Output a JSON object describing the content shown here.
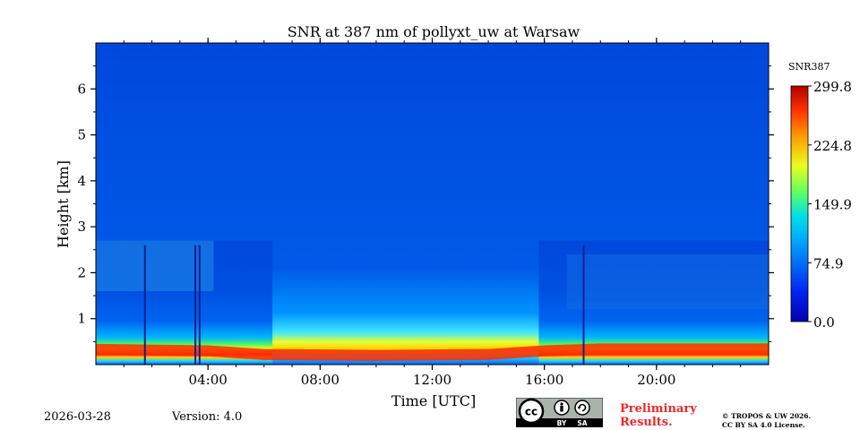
{
  "chart_data": {
    "type": "heatmap",
    "title": "SNR at 387 nm of pollyxt_uw at Warsaw",
    "xlabel": "Time [UTC]",
    "ylabel": "Height [km]",
    "xlim": [
      0,
      24
    ],
    "ylim": [
      0,
      7
    ],
    "x_ticks": [
      {
        "value": 4,
        "label": "04:00"
      },
      {
        "value": 8,
        "label": "08:00"
      },
      {
        "value": 12,
        "label": "12:00"
      },
      {
        "value": 16,
        "label": "16:00"
      },
      {
        "value": 20,
        "label": "20:00"
      }
    ],
    "y_ticks": [
      {
        "value": 1,
        "label": "1"
      },
      {
        "value": 2,
        "label": "2"
      },
      {
        "value": 3,
        "label": "3"
      },
      {
        "value": 4,
        "label": "4"
      },
      {
        "value": 5,
        "label": "5"
      },
      {
        "value": 6,
        "label": "6"
      }
    ],
    "colorbar": {
      "label": "SNR387",
      "min": 0.0,
      "max": 299.8,
      "ticks": [
        "0.0",
        "74.9",
        "149.9",
        "224.8",
        "299.8"
      ],
      "colormap": "jet"
    },
    "layers_description": "Strong signal layer near 0.2-0.5 km all day; elevated moderate signal up to ~2.5 km before 04:00 and after 16:00",
    "profile_dropouts_utc": [
      1.75,
      3.55,
      3.7,
      17.4
    ]
  },
  "footer": {
    "date": "2026-03-28",
    "version": "Version: 4.0",
    "preliminary_line1": "Preliminary",
    "preliminary_line2": "Results.",
    "copyright_line1": "© TROPOS & UW 2026.",
    "copyright_line2": "CC BY SA 4.0 License.",
    "license_badge": {
      "cc": "cc",
      "by": "BY",
      "sa": "SA"
    }
  }
}
